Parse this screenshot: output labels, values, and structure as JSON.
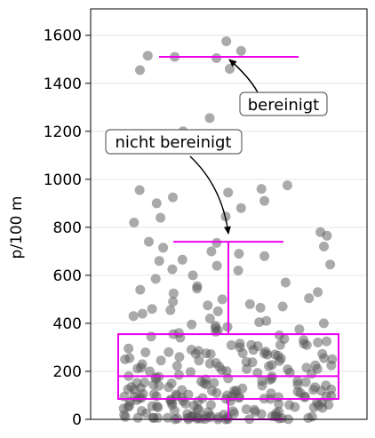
{
  "chart_data": {
    "type": "scatter",
    "title": "",
    "xlabel": "",
    "ylabel": "p/100 m",
    "ylim": [
      0,
      1710
    ],
    "yticks": [
      0,
      200,
      400,
      600,
      800,
      1000,
      1200,
      1400,
      1600
    ],
    "grid": "horizontal",
    "point_color": "#555555",
    "box_color": "#ee00ee",
    "series": [
      {
        "kind": "jitter points",
        "y_values": [
          1575,
          1535,
          1515,
          1510,
          1505,
          1460,
          1455,
          1330,
          1295,
          1255,
          1200,
          975,
          960,
          955,
          945,
          925,
          910,
          900,
          880,
          845,
          840,
          820,
          780,
          765,
          740,
          735,
          720,
          715,
          700,
          690,
          680,
          665,
          660,
          645,
          640,
          625,
          620,
          600,
          585,
          570,
          555,
          545,
          540,
          530,
          525,
          505,
          500,
          490,
          480,
          475,
          470,
          465,
          460,
          455,
          450,
          440,
          430,
          420,
          410,
          405,
          400,
          395,
          390,
          385,
          380,
          375,
          370,
          365,
          360,
          355,
          350,
          345,
          340,
          335,
          330,
          325,
          320,
          315,
          310,
          305,
          300,
          295,
          290,
          285,
          280,
          275,
          270,
          265,
          260,
          255,
          250,
          245,
          240,
          235,
          230,
          225,
          220,
          215,
          210,
          205,
          200,
          195,
          190,
          185,
          180,
          175,
          170,
          165,
          160,
          155,
          150,
          145,
          140,
          135,
          130,
          125,
          120,
          115,
          110,
          105,
          100,
          95,
          90,
          85,
          80,
          75,
          70,
          65,
          60,
          55,
          50,
          45,
          40,
          35,
          30,
          25,
          20,
          15,
          10,
          5
        ]
      }
    ],
    "boxplot": {
      "q1": 85,
      "median": 180,
      "q3": 355,
      "whisker_low": 0,
      "whisker_high": 740
    },
    "reference_line": {
      "value": 1510
    },
    "annotations": [
      {
        "text": "bereinigt",
        "points_to": 1510
      },
      {
        "text": "nicht bereinigt",
        "points_to": 740
      }
    ]
  }
}
